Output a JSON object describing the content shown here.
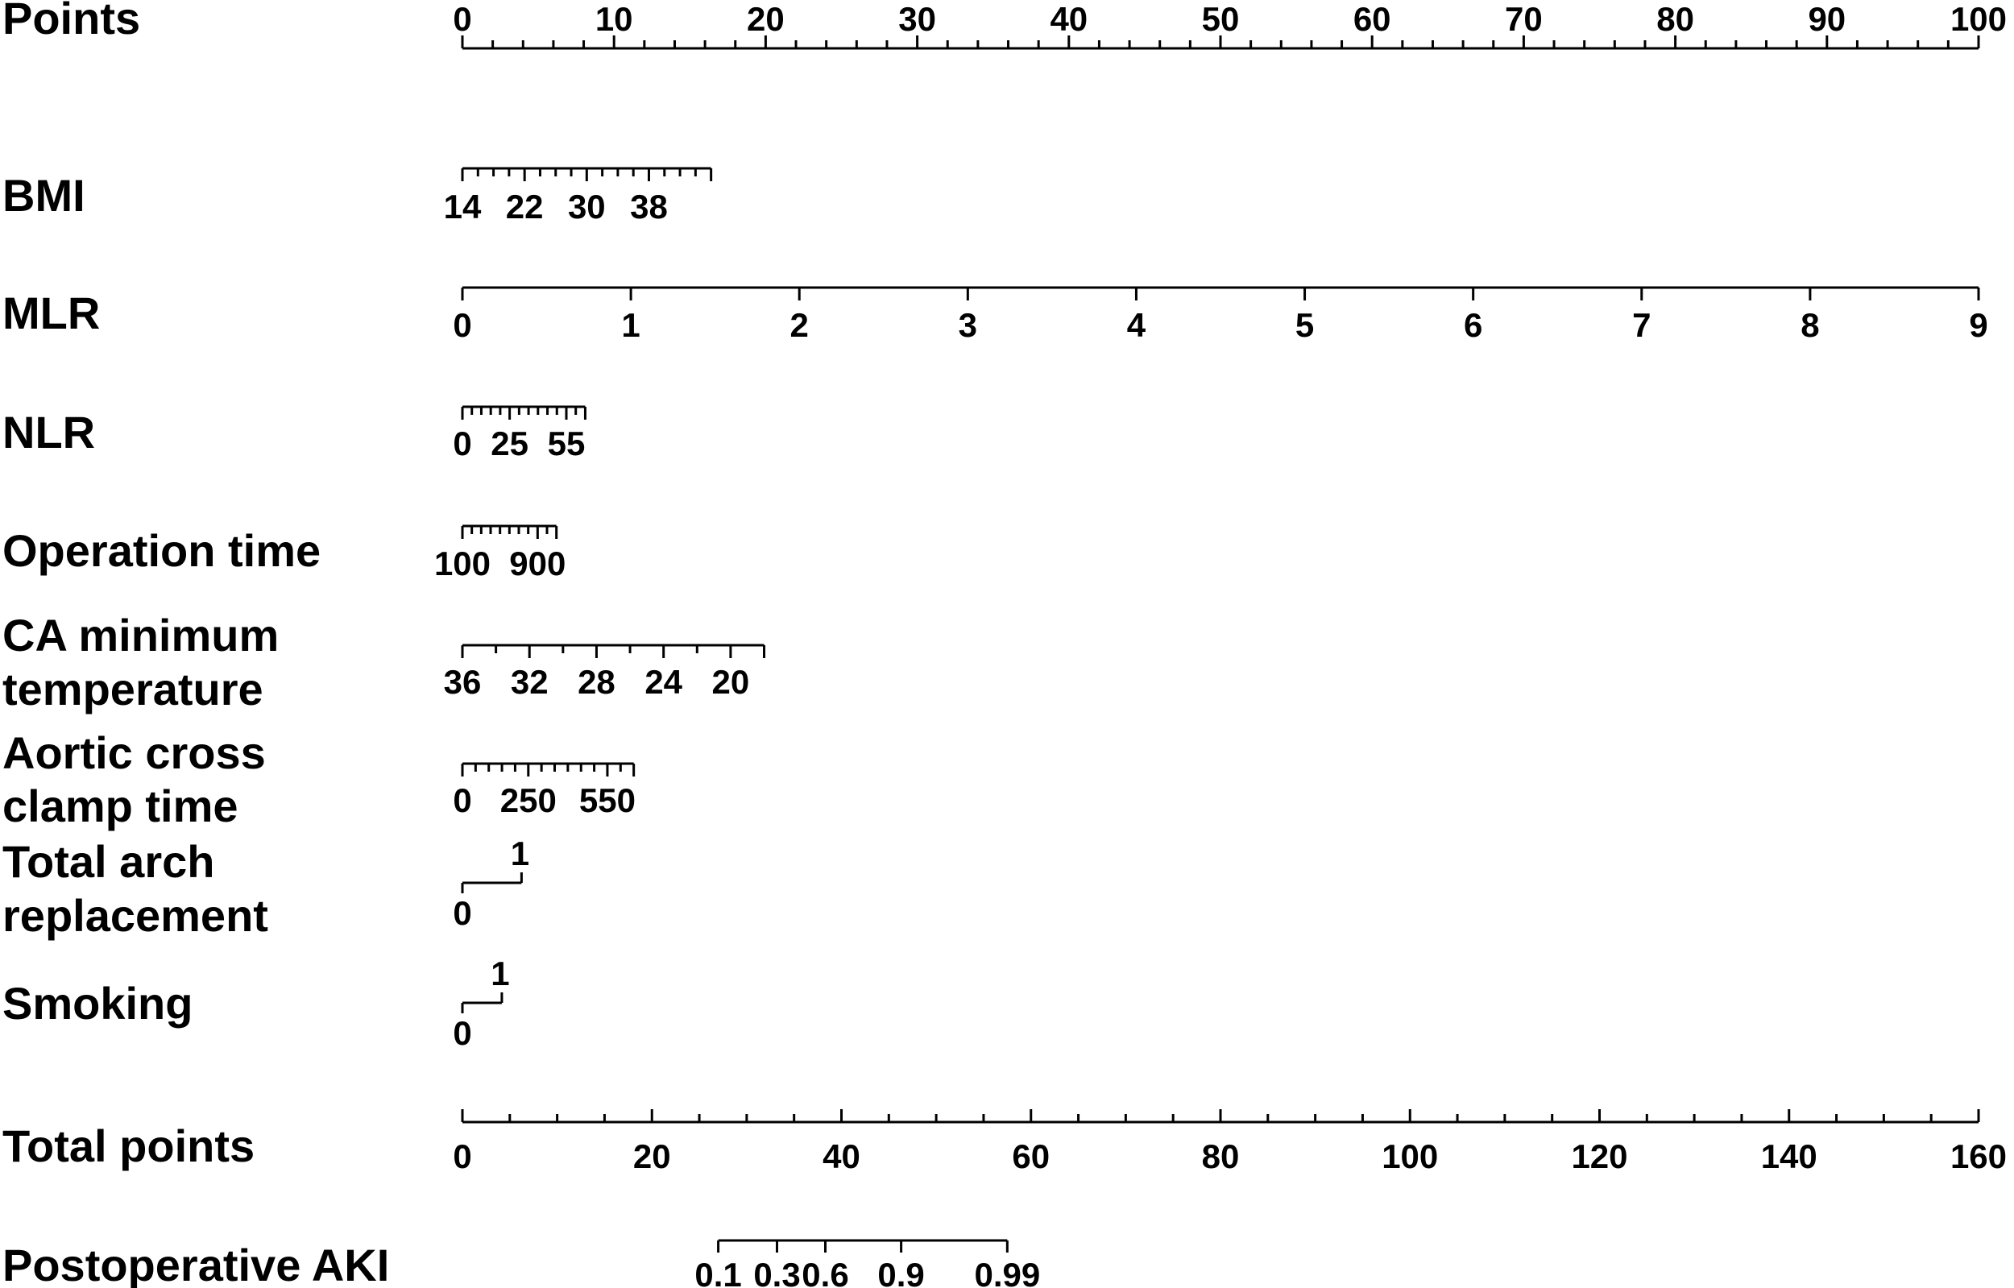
{
  "chart_data": {
    "type": "nomogram",
    "title": "",
    "colors": {
      "ink": "#000000",
      "background": "#ffffff"
    },
    "rows": [
      {
        "name": "Points",
        "label_lines": [
          "Points"
        ],
        "scale_min": 0,
        "scale_max": 100,
        "minor_step": 2,
        "tick_labels": [
          "0",
          "10",
          "20",
          "30",
          "40",
          "50",
          "60",
          "70",
          "80",
          "90",
          "100"
        ],
        "tick_values": [
          0,
          10,
          20,
          30,
          40,
          50,
          60,
          70,
          80,
          90,
          100
        ]
      },
      {
        "name": "BMI",
        "label_lines": [
          "BMI"
        ],
        "points_min": 0,
        "points_max": 16.4,
        "value_min": 14,
        "value_max": 46,
        "minor_step": 2,
        "tick_labels": [
          "14",
          "22",
          "30",
          "38"
        ],
        "tick_values": [
          14,
          22,
          30,
          38
        ]
      },
      {
        "name": "MLR",
        "label_lines": [
          "MLR"
        ],
        "points_min": 0,
        "points_max": 100,
        "value_min": 0,
        "value_max": 9,
        "minor_step": 1,
        "tick_labels": [
          "0",
          "1",
          "2",
          "3",
          "4",
          "5",
          "6",
          "7",
          "8",
          "9"
        ],
        "tick_values": [
          0,
          1,
          2,
          3,
          4,
          5,
          6,
          7,
          8,
          9
        ]
      },
      {
        "name": "NLR",
        "label_lines": [
          "NLR"
        ],
        "points_min": 0,
        "points_max": 8.1,
        "value_min": 0,
        "value_max": 65,
        "minor_step": 5,
        "tick_labels": [
          "0",
          "25",
          "55"
        ],
        "tick_values": [
          0,
          25,
          55
        ]
      },
      {
        "name": "Operation time",
        "label_lines": [
          "Operation time"
        ],
        "points_min": 0,
        "points_max": 6.2,
        "value_min": 100,
        "value_max": 1100,
        "minor_step": 100,
        "tick_labels": [
          "100",
          "900"
        ],
        "tick_values": [
          100,
          900
        ]
      },
      {
        "name": "CA minimum temperature",
        "label_lines": [
          "CA minimum",
          "temperature"
        ],
        "points_min": 0,
        "points_max": 19.9,
        "value_min": 36,
        "value_max": 18,
        "minor_step": 2,
        "tick_labels": [
          "36",
          "32",
          "28",
          "24",
          "20"
        ],
        "tick_values": [
          36,
          32,
          28,
          24,
          20
        ]
      },
      {
        "name": "Aortic cross clamp time",
        "label_lines": [
          "Aortic cross",
          "clamp time"
        ],
        "points_min": 0,
        "points_max": 11.3,
        "value_min": 0,
        "value_max": 650,
        "minor_step": 50,
        "tick_labels": [
          "0",
          "250",
          "550"
        ],
        "tick_values": [
          0,
          250,
          550
        ]
      },
      {
        "name": "Total arch replacement",
        "label_lines": [
          "Total arch",
          "replacement"
        ],
        "binary": true,
        "points_of_one": 3.9,
        "tick_labels": [
          "0",
          "1"
        ],
        "tick_values": [
          0,
          1
        ]
      },
      {
        "name": "Smoking",
        "label_lines": [
          "Smoking"
        ],
        "binary": true,
        "points_of_one": 2.6,
        "tick_labels": [
          "0",
          "1"
        ],
        "tick_values": [
          0,
          1
        ]
      },
      {
        "name": "Total points",
        "label_lines": [
          "Total points"
        ],
        "scale_min": 0,
        "scale_max": 160,
        "minor_step": 5,
        "tick_labels": [
          "0",
          "20",
          "40",
          "60",
          "80",
          "100",
          "120",
          "140",
          "160"
        ],
        "tick_values": [
          0,
          20,
          40,
          60,
          80,
          100,
          120,
          140,
          160
        ]
      },
      {
        "name": "Postoperative AKI",
        "label_lines": [
          "Postoperative AKI"
        ],
        "risk_axis": true,
        "tick_labels": [
          "0.1",
          "0.3",
          "0.6",
          "0.9",
          "0.99"
        ],
        "tick_values": [
          0.1,
          0.3,
          0.6,
          0.9,
          0.99
        ],
        "tick_total_points": [
          27,
          33.2,
          38.3,
          46.3,
          57.5
        ]
      }
    ]
  }
}
